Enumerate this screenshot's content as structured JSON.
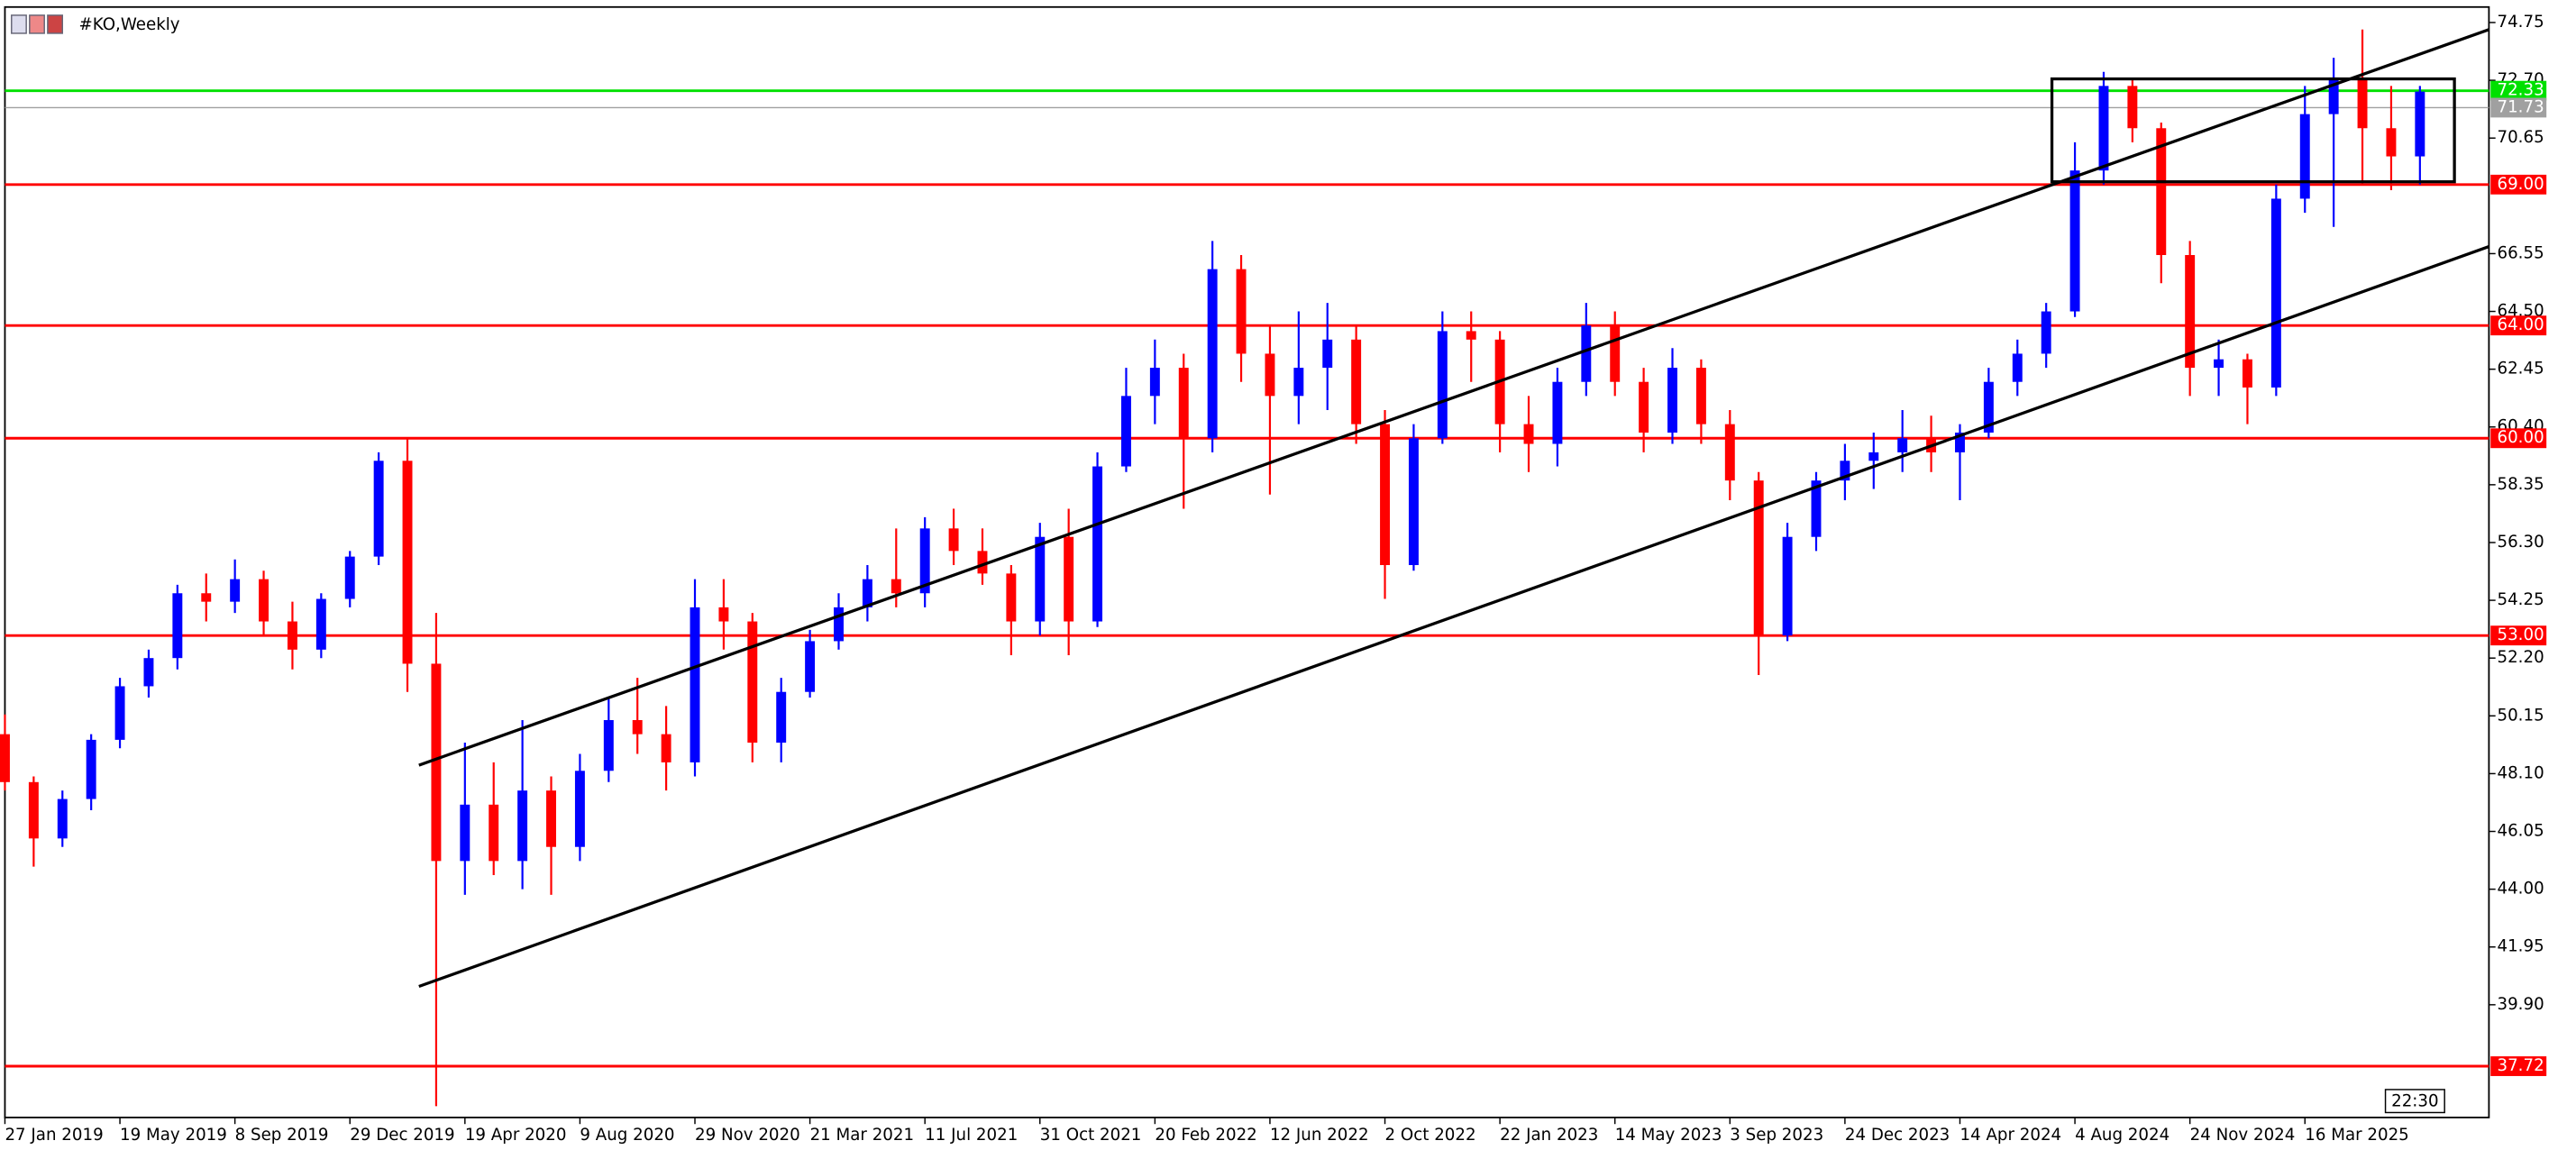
{
  "chart_data": {
    "type": "candlestick",
    "title": "#KO,Weekly",
    "time_label": "22:30",
    "categories": [
      "27 Jan 2019",
      null,
      null,
      null,
      "19 May 2019",
      null,
      null,
      null,
      "8 Sep 2019",
      null,
      null,
      null,
      "29 Dec 2019",
      null,
      null,
      null,
      "19 Apr 2020",
      null,
      null,
      null,
      "9 Aug 2020",
      null,
      null,
      null,
      "29 Nov 2020",
      null,
      null,
      null,
      "21 Mar 2021",
      null,
      null,
      null,
      "11 Jul 2021",
      null,
      null,
      null,
      "31 Oct 2021",
      null,
      null,
      null,
      "20 Feb 2022",
      null,
      null,
      null,
      "12 Jun 2022",
      null,
      null,
      null,
      "2 Oct 2022",
      null,
      null,
      null,
      "22 Jan 2023",
      null,
      null,
      null,
      "14 May 2023",
      null,
      null,
      null,
      "3 Sep 2023",
      null,
      null,
      null,
      "24 Dec 2023",
      null,
      null,
      null,
      "14 Apr 2024",
      null,
      null,
      null,
      "4 Aug 2024",
      null,
      null,
      null,
      "24 Nov 2024",
      null,
      null,
      null,
      "16 Mar 2025",
      null,
      null,
      null,
      null
    ],
    "open": [
      49.5,
      47.8,
      45.8,
      47.2,
      49.3,
      51.2,
      52.2,
      54.5,
      54.2,
      55,
      53.5,
      52.5,
      54.3,
      55.8,
      59.2,
      52,
      45,
      47,
      45,
      47.5,
      45.5,
      48.2,
      50,
      49.5,
      48.5,
      54,
      53.5,
      49.2,
      51,
      52.8,
      54,
      55,
      54.5,
      56.8,
      56,
      55.2,
      53.5,
      56.5,
      53.5,
      59,
      61.5,
      62.5,
      60,
      66,
      63,
      61.5,
      62.5,
      63.5,
      60.5,
      55.5,
      60,
      63.8,
      63.5,
      60.5,
      59.8,
      62,
      64,
      62,
      60.2,
      62.5,
      60.5,
      58.5,
      53,
      56.5,
      58.5,
      59.2,
      59.5,
      60,
      59.5,
      60.2,
      62,
      63,
      64.5,
      69.5,
      72.5,
      71,
      66.5,
      62.5,
      62.8,
      61.8,
      68.5,
      71.5,
      72.8,
      71,
      70
    ],
    "high": [
      50.2,
      48,
      47.5,
      49.5,
      51.5,
      52.5,
      54.8,
      55.2,
      55.7,
      55.3,
      54.2,
      54.5,
      56,
      59.5,
      60,
      53.8,
      49.2,
      48.5,
      50,
      48,
      48.8,
      50.8,
      51.5,
      50.5,
      55,
      55,
      53.8,
      51.5,
      53.2,
      54.5,
      55.5,
      56.8,
      57.2,
      57.5,
      56.8,
      55.5,
      57,
      57.5,
      59.5,
      62.5,
      63.5,
      63,
      67,
      66.5,
      64,
      64.5,
      64.8,
      64,
      61,
      60.5,
      64.5,
      64.5,
      63.8,
      61.5,
      62.5,
      64.8,
      64.5,
      62.5,
      63.2,
      62.8,
      61,
      58.8,
      57,
      58.8,
      59.8,
      60.2,
      61,
      60.8,
      60.5,
      62.5,
      63.5,
      64.8,
      70.5,
      73,
      72.8,
      71.2,
      67,
      63.5,
      63,
      69,
      72.5,
      73.5,
      74.5,
      72.5,
      72.5
    ],
    "low": [
      47.5,
      44.8,
      45.5,
      46.8,
      49,
      50.8,
      51.8,
      53.5,
      53.8,
      53,
      51.8,
      52.2,
      54,
      55.5,
      51,
      36.3,
      43.8,
      44.5,
      44,
      43.8,
      45,
      47.8,
      48.8,
      47.5,
      48,
      52.5,
      48.5,
      48.5,
      50.8,
      52.5,
      53.5,
      54,
      54,
      55.5,
      54.8,
      52.3,
      53,
      52.3,
      53.3,
      58.8,
      60.5,
      57.5,
      59.5,
      62,
      58,
      60.5,
      61,
      59.8,
      54.3,
      55.3,
      59.8,
      62,
      59.5,
      58.8,
      59,
      61.5,
      61.5,
      59.5,
      59.8,
      59.8,
      57.8,
      51.6,
      52.8,
      56,
      57.8,
      58.2,
      58.8,
      58.8,
      57.8,
      60,
      61.5,
      62.5,
      64.3,
      69,
      70.5,
      65.5,
      61.5,
      61.5,
      60.5,
      61.5,
      68,
      67.5,
      69,
      68.8,
      69
    ],
    "close": [
      47.8,
      45.8,
      47.2,
      49.3,
      51.2,
      52.2,
      54.5,
      54.2,
      55,
      53.5,
      52.5,
      54.3,
      55.8,
      59.2,
      52,
      45,
      47,
      45,
      47.5,
      45.5,
      48.2,
      50,
      49.5,
      48.5,
      54,
      53.5,
      49.2,
      51,
      52.8,
      54,
      55,
      54.5,
      56.8,
      56,
      55.2,
      53.5,
      56.5,
      53.5,
      59,
      61.5,
      62.5,
      60,
      66,
      63,
      61.5,
      62.5,
      63.5,
      60.5,
      55.5,
      60,
      63.8,
      63.5,
      60.5,
      59.8,
      62,
      64,
      62,
      60.2,
      62.5,
      60.5,
      58.5,
      53,
      56.5,
      58.5,
      59.2,
      59.5,
      60,
      59.5,
      60.2,
      62,
      63,
      64.5,
      69.5,
      72.5,
      71,
      66.5,
      62.5,
      62.8,
      61.8,
      68.5,
      71.5,
      72.8,
      71,
      70,
      72.3
    ],
    "up_color": "#0000ff",
    "down_color": "#ff0000",
    "ylim": [
      35.9,
      75.3
    ],
    "yticks": [
      74.75,
      {
        "value": 72.7,
        "label": "72.70"
      },
      70.65,
      66.55,
      {
        "value": 64.5,
        "label": "64.50"
      },
      62.45,
      {
        "value": 60.4,
        "label": "60.40"
      },
      58.35,
      {
        "value": 56.3,
        "label": "56.30"
      },
      54.25,
      {
        "value": 52.2,
        "label": "52.20"
      },
      50.15,
      {
        "value": 48.1,
        "label": "48.10"
      },
      46.05,
      {
        "value": 44,
        "label": "44.00"
      },
      41.95,
      {
        "value": 39.9,
        "label": "39.90"
      }
    ],
    "price_lines": [
      {
        "value": 72.33,
        "label": "72.33",
        "color": "#00e000"
      },
      {
        "value": 71.73,
        "label": "71.73",
        "color": "#a0a0a0"
      },
      {
        "value": 69,
        "label": "69.00",
        "color": "#ff0000"
      },
      {
        "value": 64,
        "label": "64.00",
        "color": "#ff0000"
      },
      {
        "value": 60,
        "label": "60.00",
        "color": "#ff0000"
      },
      {
        "value": 53,
        "label": "53.00",
        "color": "#ff0000"
      },
      {
        "value": 37.72,
        "label": "37.72",
        "color": "#ff0000"
      }
    ],
    "trend_lines": [
      {
        "start_index": 14.4,
        "start_value": 48.4,
        "end_index": 86.4,
        "end_value": 74.5
      },
      {
        "start_index": 14.4,
        "start_value": 40.55,
        "end_index": 86.4,
        "end_value": 66.8
      }
    ],
    "box": {
      "start_index": 71.2,
      "end_index": 85.2,
      "top": 72.75,
      "bottom": 69.1
    }
  }
}
